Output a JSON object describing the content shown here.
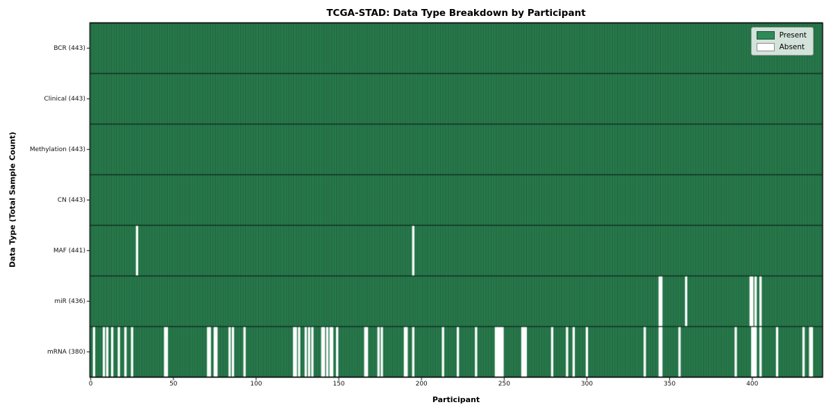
{
  "chart_data": {
    "type": "heatmap",
    "title": "TCGA-STAD: Data Type Breakdown by Participant",
    "xlabel": "Participant",
    "ylabel": "Data Type (Total Sample Count)",
    "n_participants": 443,
    "xlim": [
      0,
      443
    ],
    "x_ticks": [
      0,
      50,
      100,
      150,
      200,
      250,
      300,
      350,
      400
    ],
    "grid": false,
    "legend_position": "upper right",
    "legend": {
      "present_label": "Present",
      "absent_label": "Absent"
    },
    "colors": {
      "present": "#2e8b57",
      "absent": "#ffffff",
      "cell_edge": "rgba(0,0,0,0.5)",
      "row_divider": "rgba(0,0,0,0.85)",
      "axis": "#000000"
    },
    "rows": [
      {
        "name": "BCR",
        "label": "BCR (443)",
        "total": 443,
        "absent_participants": []
      },
      {
        "name": "Clinical",
        "label": "Clinical (443)",
        "total": 443,
        "absent_participants": []
      },
      {
        "name": "Methylation",
        "label": "Methylation (443)",
        "total": 443,
        "absent_participants": []
      },
      {
        "name": "CN",
        "label": "CN (443)",
        "total": 443,
        "absent_participants": []
      },
      {
        "name": "MAF",
        "label": "MAF (441)",
        "total": 441,
        "absent_participants": [
          28,
          195
        ]
      },
      {
        "name": "miR",
        "label": "miR (436)",
        "total": 436,
        "absent_participants": [
          344,
          345,
          360,
          399,
          400,
          402,
          405
        ]
      },
      {
        "name": "mRNA",
        "label": "mRNA (380)",
        "total": 380,
        "absent_participants": [
          2,
          8,
          10,
          13,
          17,
          21,
          25,
          45,
          46,
          71,
          72,
          75,
          76,
          84,
          86,
          93,
          123,
          124,
          126,
          130,
          132,
          134,
          140,
          141,
          143,
          145,
          146,
          149,
          166,
          167,
          174,
          176,
          190,
          191,
          195,
          213,
          222,
          233,
          245,
          246,
          247,
          248,
          249,
          261,
          262,
          263,
          279,
          288,
          292,
          300,
          335,
          344,
          345,
          356,
          390,
          400,
          401,
          402,
          405,
          415,
          431,
          435,
          436
        ]
      }
    ]
  }
}
